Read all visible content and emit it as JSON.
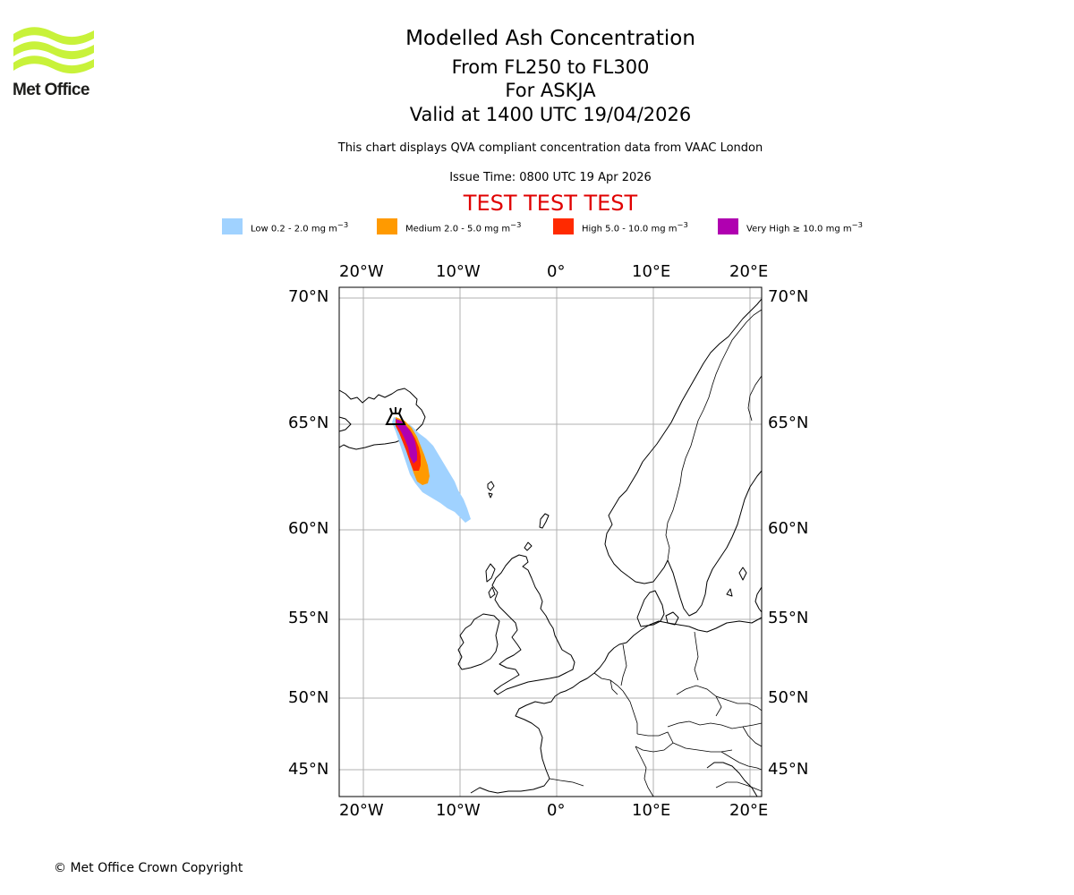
{
  "logo": {
    "name": "Met Office",
    "brand_color": "#c8f23a",
    "text_color": "#1d1d1b"
  },
  "header": {
    "title": "Modelled Ash Concentration",
    "level_range": "From FL250 to FL300",
    "volcano": "For ASKJA",
    "valid_time": "Valid at 1400 UTC 19/04/2026",
    "description": "This chart displays QVA compliant concentration data from VAAC London",
    "issue_time": "Issue Time: 0800 UTC 19 Apr 2026",
    "test_banner": "TEST TEST TEST",
    "test_banner_color": "#e00000"
  },
  "legend": {
    "items": [
      {
        "label": "Low 0.2 - 2.0 mg m",
        "unit_exp": "−3",
        "color": "#a0d2ff"
      },
      {
        "label": "Medium 2.0 - 5.0 mg m",
        "unit_exp": "−3",
        "color": "#ff9a00"
      },
      {
        "label": "High 5.0 - 10.0 mg m",
        "unit_exp": "−3",
        "color": "#ff2a00"
      },
      {
        "label": "Very High  ≥  10.0 mg m",
        "unit_exp": "−3",
        "color": "#b000b0"
      }
    ]
  },
  "map": {
    "lon_ticks": [
      "20°W",
      "10°W",
      "0°",
      "10°E",
      "20°E"
    ],
    "lat_ticks": [
      "70°N",
      "65°N",
      "60°N",
      "55°N",
      "50°N",
      "45°N"
    ],
    "extent": {
      "lon_min": -22.5,
      "lon_max": 21.5,
      "lat_min": 43.5,
      "lat_max": 70.5
    },
    "gridline_color": "#b0b0b0",
    "volcano_marker": "volcano-icon",
    "volcano_location": {
      "lon": -16.75,
      "lat": 65.03
    }
  },
  "footer": {
    "copyright": "© Met Office Crown Copyright"
  }
}
